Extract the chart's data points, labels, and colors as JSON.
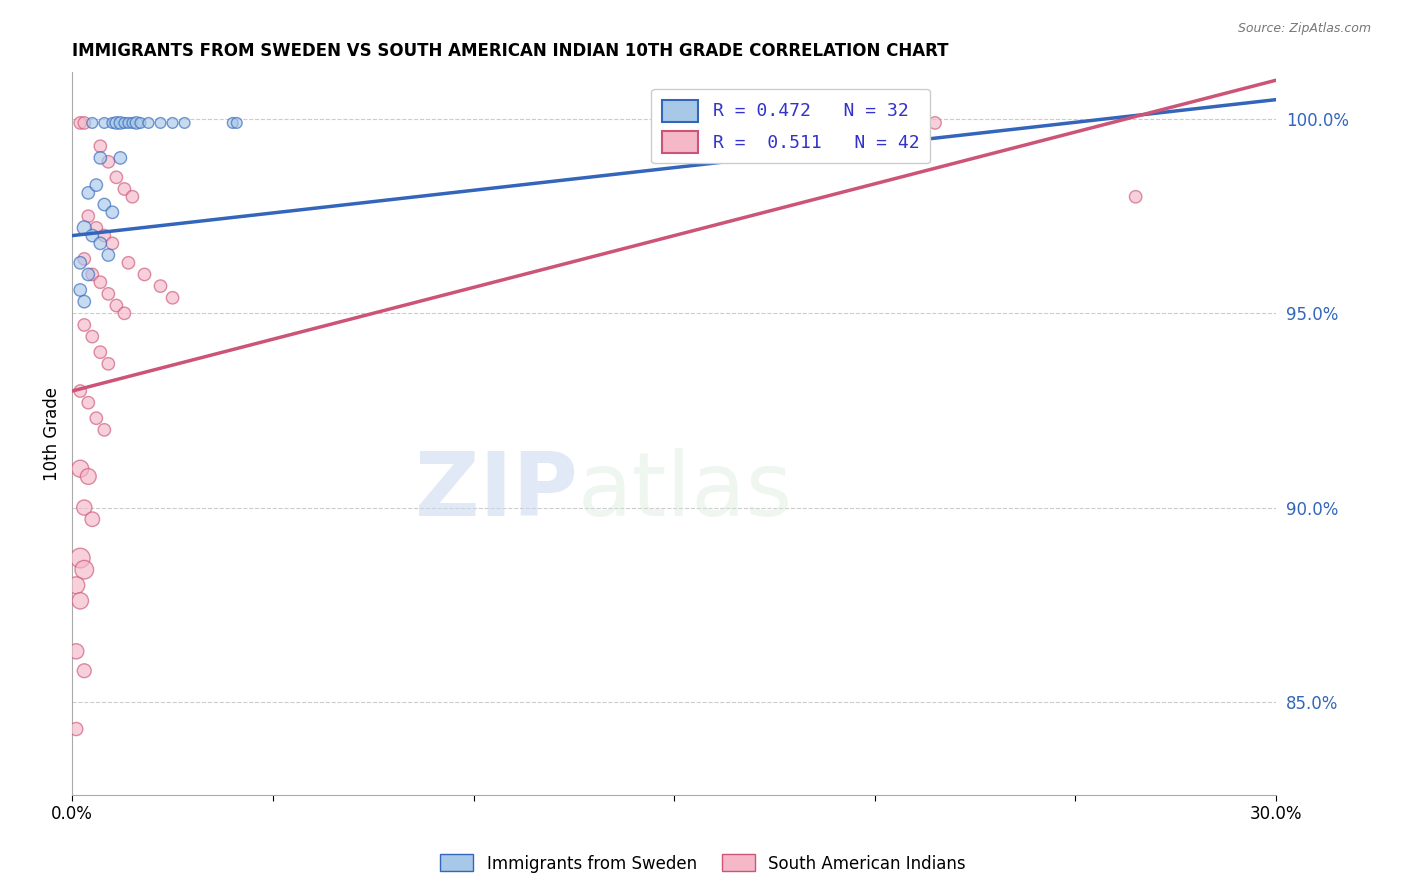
{
  "title": "IMMIGRANTS FROM SWEDEN VS SOUTH AMERICAN INDIAN 10TH GRADE CORRELATION CHART",
  "source": "Source: ZipAtlas.com",
  "ylabel": "10th Grade",
  "ylabel_right_ticks": [
    "85.0%",
    "90.0%",
    "95.0%",
    "100.0%"
  ],
  "ylabel_right_vals": [
    0.85,
    0.9,
    0.95,
    1.0
  ],
  "xlim": [
    0.0,
    0.3
  ],
  "ylim": [
    0.826,
    1.012
  ],
  "legend_blue_R": "R = 0.472",
  "legend_blue_N": "N = 32",
  "legend_pink_R": "R =  0.511",
  "legend_pink_N": "N = 42",
  "blue_color": "#A8C8E8",
  "pink_color": "#F4B8C8",
  "line_blue_color": "#3366BB",
  "line_pink_color": "#CC5577",
  "watermark_zip": "ZIP",
  "watermark_atlas": "atlas",
  "blue_line_x": [
    0.0,
    0.3
  ],
  "blue_line_y": [
    0.97,
    1.005
  ],
  "pink_line_x": [
    0.0,
    0.3
  ],
  "pink_line_y": [
    0.93,
    1.01
  ],
  "sweden_points": [
    [
      0.005,
      0.999
    ],
    [
      0.008,
      0.999
    ],
    [
      0.01,
      0.999
    ],
    [
      0.011,
      0.999
    ],
    [
      0.012,
      0.999
    ],
    [
      0.013,
      0.999
    ],
    [
      0.014,
      0.999
    ],
    [
      0.015,
      0.999
    ],
    [
      0.016,
      0.999
    ],
    [
      0.017,
      0.999
    ],
    [
      0.019,
      0.999
    ],
    [
      0.022,
      0.999
    ],
    [
      0.025,
      0.999
    ],
    [
      0.028,
      0.999
    ],
    [
      0.04,
      0.999
    ],
    [
      0.041,
      0.999
    ],
    [
      0.007,
      0.99
    ],
    [
      0.012,
      0.99
    ],
    [
      0.004,
      0.981
    ],
    [
      0.006,
      0.983
    ],
    [
      0.008,
      0.978
    ],
    [
      0.01,
      0.976
    ],
    [
      0.003,
      0.972
    ],
    [
      0.005,
      0.97
    ],
    [
      0.007,
      0.968
    ],
    [
      0.009,
      0.965
    ],
    [
      0.002,
      0.963
    ],
    [
      0.004,
      0.96
    ],
    [
      0.002,
      0.956
    ],
    [
      0.003,
      0.953
    ],
    [
      0.17,
      0.999
    ],
    [
      0.21,
      0.999
    ]
  ],
  "sweden_sizes": [
    60,
    60,
    60,
    80,
    80,
    60,
    60,
    60,
    80,
    60,
    60,
    60,
    60,
    60,
    60,
    60,
    80,
    80,
    80,
    80,
    80,
    80,
    100,
    80,
    80,
    80,
    80,
    80,
    80,
    80,
    70,
    70
  ],
  "indian_points": [
    [
      0.002,
      0.999
    ],
    [
      0.003,
      0.999
    ],
    [
      0.007,
      0.993
    ],
    [
      0.009,
      0.989
    ],
    [
      0.011,
      0.985
    ],
    [
      0.013,
      0.982
    ],
    [
      0.015,
      0.98
    ],
    [
      0.004,
      0.975
    ],
    [
      0.006,
      0.972
    ],
    [
      0.008,
      0.97
    ],
    [
      0.01,
      0.968
    ],
    [
      0.003,
      0.964
    ],
    [
      0.005,
      0.96
    ],
    [
      0.007,
      0.958
    ],
    [
      0.009,
      0.955
    ],
    [
      0.011,
      0.952
    ],
    [
      0.013,
      0.95
    ],
    [
      0.003,
      0.947
    ],
    [
      0.005,
      0.944
    ],
    [
      0.007,
      0.94
    ],
    [
      0.009,
      0.937
    ],
    [
      0.002,
      0.93
    ],
    [
      0.004,
      0.927
    ],
    [
      0.006,
      0.923
    ],
    [
      0.008,
      0.92
    ],
    [
      0.002,
      0.91
    ],
    [
      0.004,
      0.908
    ],
    [
      0.003,
      0.9
    ],
    [
      0.005,
      0.897
    ],
    [
      0.002,
      0.887
    ],
    [
      0.003,
      0.884
    ],
    [
      0.001,
      0.88
    ],
    [
      0.002,
      0.876
    ],
    [
      0.001,
      0.863
    ],
    [
      0.003,
      0.858
    ],
    [
      0.001,
      0.843
    ],
    [
      0.014,
      0.963
    ],
    [
      0.018,
      0.96
    ],
    [
      0.022,
      0.957
    ],
    [
      0.025,
      0.954
    ],
    [
      0.215,
      0.999
    ],
    [
      0.265,
      0.98
    ]
  ],
  "indian_sizes": [
    80,
    80,
    80,
    80,
    80,
    80,
    80,
    80,
    80,
    80,
    80,
    80,
    80,
    80,
    80,
    80,
    80,
    80,
    80,
    80,
    80,
    80,
    80,
    80,
    80,
    150,
    130,
    120,
    110,
    200,
    180,
    150,
    140,
    120,
    100,
    90,
    80,
    80,
    80,
    80,
    80,
    80
  ]
}
